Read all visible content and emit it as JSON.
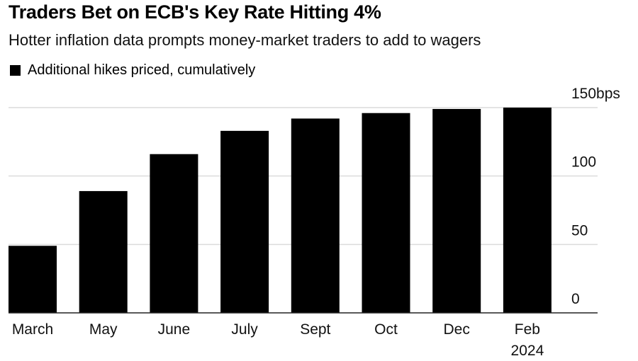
{
  "chart_data": {
    "type": "bar",
    "title": "Traders Bet on ECB's Key Rate Hitting 4%",
    "subtitle": "Hotter inflation data prompts money-market traders to add to wagers",
    "legend": [
      {
        "name": "Additional hikes priced, cumulatively",
        "color": "#000000"
      }
    ],
    "legend_position": "top-left",
    "categories": [
      "March",
      "May",
      "June",
      "July",
      "Sept",
      "Oct",
      "Dec",
      "Feb"
    ],
    "category_sublabels": [
      "",
      "",
      "",
      "",
      "",
      "",
      "",
      "2024"
    ],
    "series": [
      {
        "name": "Additional hikes priced, cumulatively",
        "values": [
          49,
          89,
          116,
          133,
          142,
          146,
          149,
          150
        ]
      }
    ],
    "xlabel": "",
    "ylabel": "",
    "y_unit": "bps",
    "ylim": [
      0,
      150
    ],
    "yticks": [
      0,
      50,
      100,
      150
    ],
    "ytick_labels": [
      "0",
      "50",
      "100",
      "150bps"
    ],
    "y_axis_side": "right",
    "grid": true
  }
}
